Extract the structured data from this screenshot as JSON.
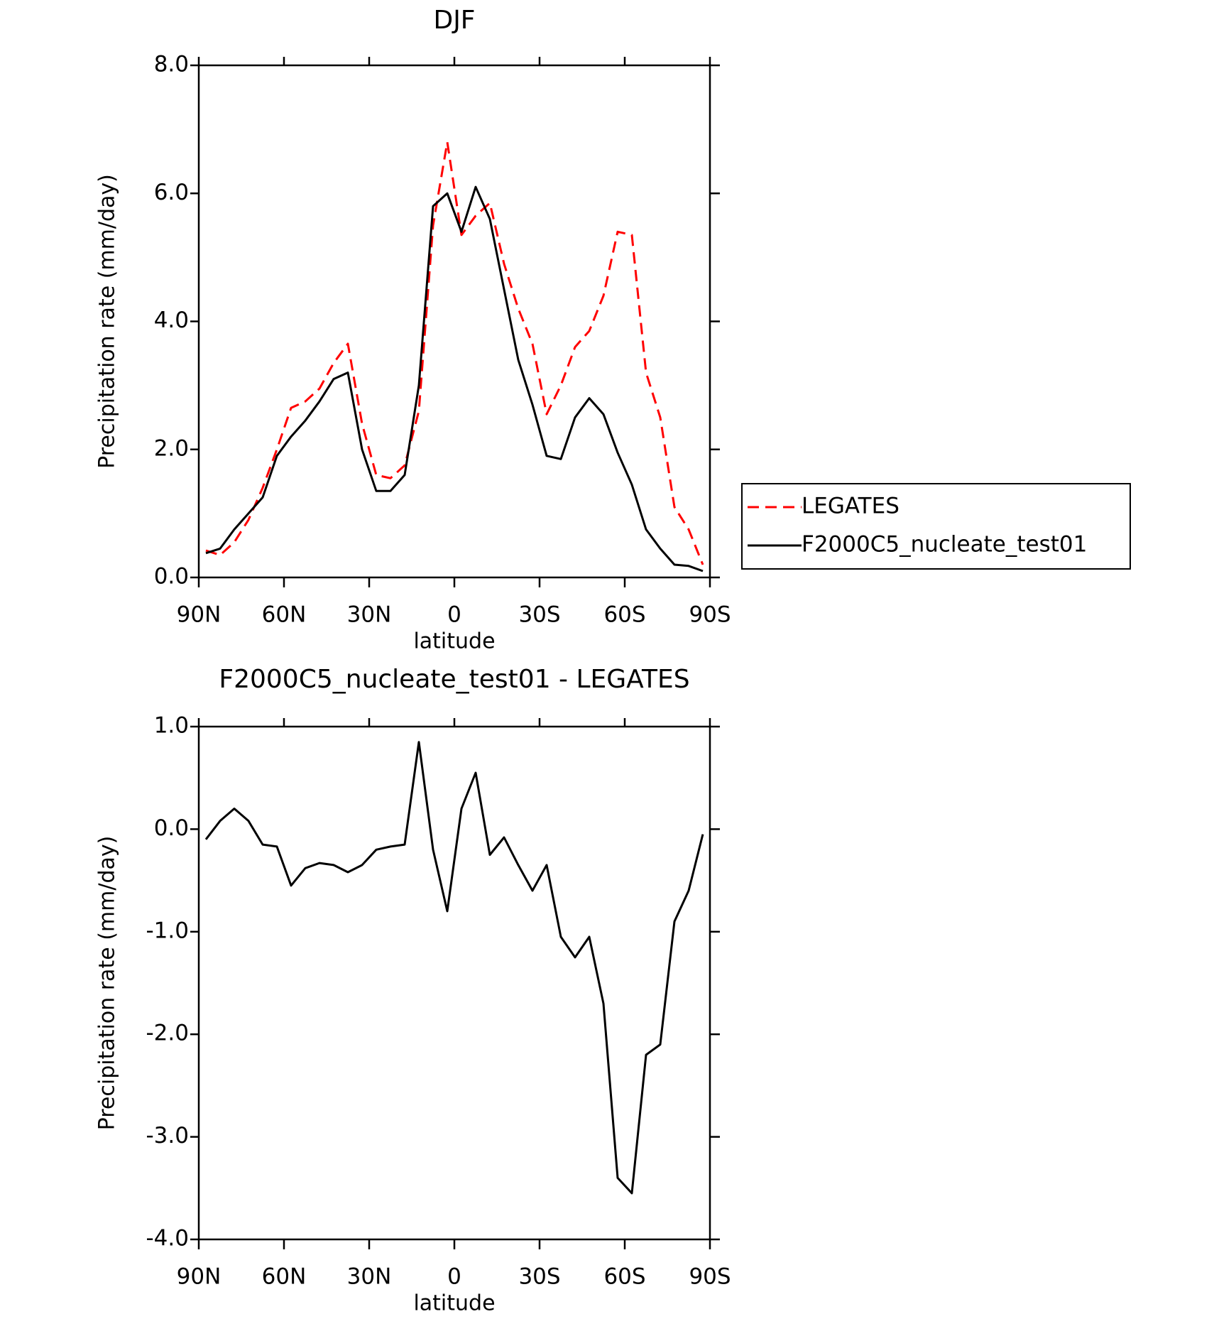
{
  "chart_data": [
    {
      "type": "line",
      "title": "DJF",
      "xlabel": "latitude",
      "ylabel": "Precipitation rate (mm/day)",
      "x": [
        87.5,
        82.5,
        77.5,
        72.5,
        67.5,
        62.5,
        57.5,
        52.5,
        47.5,
        42.5,
        37.5,
        32.5,
        27.5,
        22.5,
        17.5,
        12.5,
        7.5,
        2.5,
        -2.5,
        -7.5,
        -12.5,
        -17.5,
        -22.5,
        -27.5,
        -32.5,
        -37.5,
        -42.5,
        -47.5,
        -52.5,
        -57.5,
        -62.5,
        -67.5,
        -72.5,
        -77.5,
        -82.5,
        -87.5
      ],
      "series": [
        {
          "name": "LEGATES",
          "color": "#ff0000",
          "dash": true,
          "values": [
            0.42,
            0.35,
            0.55,
            0.9,
            1.4,
            2.0,
            2.65,
            2.75,
            2.95,
            3.35,
            3.65,
            2.4,
            1.6,
            1.55,
            1.75,
            2.6,
            5.5,
            6.8,
            5.35,
            5.65,
            5.85,
            4.9,
            4.2,
            3.65,
            2.55,
            3.0,
            3.6,
            3.85,
            4.4,
            5.4,
            5.35,
            3.2,
            2.5,
            1.1,
            0.75,
            0.2
          ]
        },
        {
          "name": "F2000C5_nucleate_test01",
          "color": "#000000",
          "dash": false,
          "values": [
            0.38,
            0.45,
            0.75,
            1.0,
            1.25,
            1.9,
            2.2,
            2.45,
            2.75,
            3.1,
            3.2,
            2.0,
            1.35,
            1.35,
            1.6,
            3.0,
            5.8,
            6.0,
            5.4,
            6.1,
            5.6,
            4.5,
            3.4,
            2.7,
            1.9,
            1.85,
            2.5,
            2.8,
            2.55,
            1.95,
            1.45,
            0.75,
            0.45,
            0.2,
            0.18,
            0.1
          ]
        }
      ],
      "xlim": [
        90,
        -90
      ],
      "xticks": [
        {
          "value": 90,
          "label": "90N"
        },
        {
          "value": 60,
          "label": "60N"
        },
        {
          "value": 30,
          "label": "30N"
        },
        0,
        {
          "value": -30,
          "label": "30S"
        },
        {
          "value": -60,
          "label": "60S"
        },
        {
          "value": -90,
          "label": "90S"
        }
      ],
      "ylim": [
        0,
        8
      ],
      "yticks": [
        {
          "value": 0,
          "label": "0.0"
        },
        {
          "value": 2,
          "label": "2.0"
        },
        {
          "value": 4,
          "label": "4.0"
        },
        {
          "value": 6,
          "label": "6.0"
        },
        {
          "value": 8,
          "label": "8.0"
        }
      ],
      "legend": "outside-right"
    },
    {
      "type": "line",
      "title": "F2000C5_nucleate_test01 - LEGATES",
      "xlabel": "latitude",
      "ylabel": "Precipitation rate (mm/day)",
      "x": [
        87.5,
        82.5,
        77.5,
        72.5,
        67.5,
        62.5,
        57.5,
        52.5,
        47.5,
        42.5,
        37.5,
        32.5,
        27.5,
        22.5,
        17.5,
        12.5,
        7.5,
        2.5,
        -2.5,
        -7.5,
        -12.5,
        -17.5,
        -22.5,
        -27.5,
        -32.5,
        -37.5,
        -42.5,
        -47.5,
        -52.5,
        -57.5,
        -62.5,
        -67.5,
        -72.5,
        -77.5,
        -82.5,
        -87.5
      ],
      "series": [
        {
          "color": "#000000",
          "dash": false,
          "values": [
            -0.1,
            0.08,
            0.2,
            0.08,
            -0.15,
            -0.17,
            -0.55,
            -0.38,
            -0.33,
            -0.35,
            -0.42,
            -0.35,
            -0.2,
            -0.17,
            -0.15,
            0.85,
            -0.2,
            -0.8,
            0.2,
            0.55,
            -0.25,
            -0.08,
            -0.35,
            -0.6,
            -0.35,
            -1.05,
            -1.25,
            -1.05,
            -1.7,
            -3.4,
            -3.55,
            -2.2,
            -2.1,
            -0.9,
            -0.6,
            -0.05
          ]
        }
      ],
      "xlim": [
        90,
        -90
      ],
      "xticks": [
        {
          "value": 90,
          "label": "90N"
        },
        {
          "value": 60,
          "label": "60N"
        },
        {
          "value": 30,
          "label": "30N"
        },
        0,
        {
          "value": -30,
          "label": "30S"
        },
        {
          "value": -60,
          "label": "60S"
        },
        {
          "value": -90,
          "label": "90S"
        }
      ],
      "ylim": [
        -4,
        1
      ],
      "yticks": [
        {
          "value": -4,
          "label": "-4.0"
        },
        {
          "value": -3,
          "label": "-3.0"
        },
        {
          "value": -2,
          "label": "-2.0"
        },
        {
          "value": -1,
          "label": "-1.0"
        },
        {
          "value": 0,
          "label": "0.0"
        },
        {
          "value": 1,
          "label": "1.0"
        }
      ],
      "legend": false
    }
  ]
}
